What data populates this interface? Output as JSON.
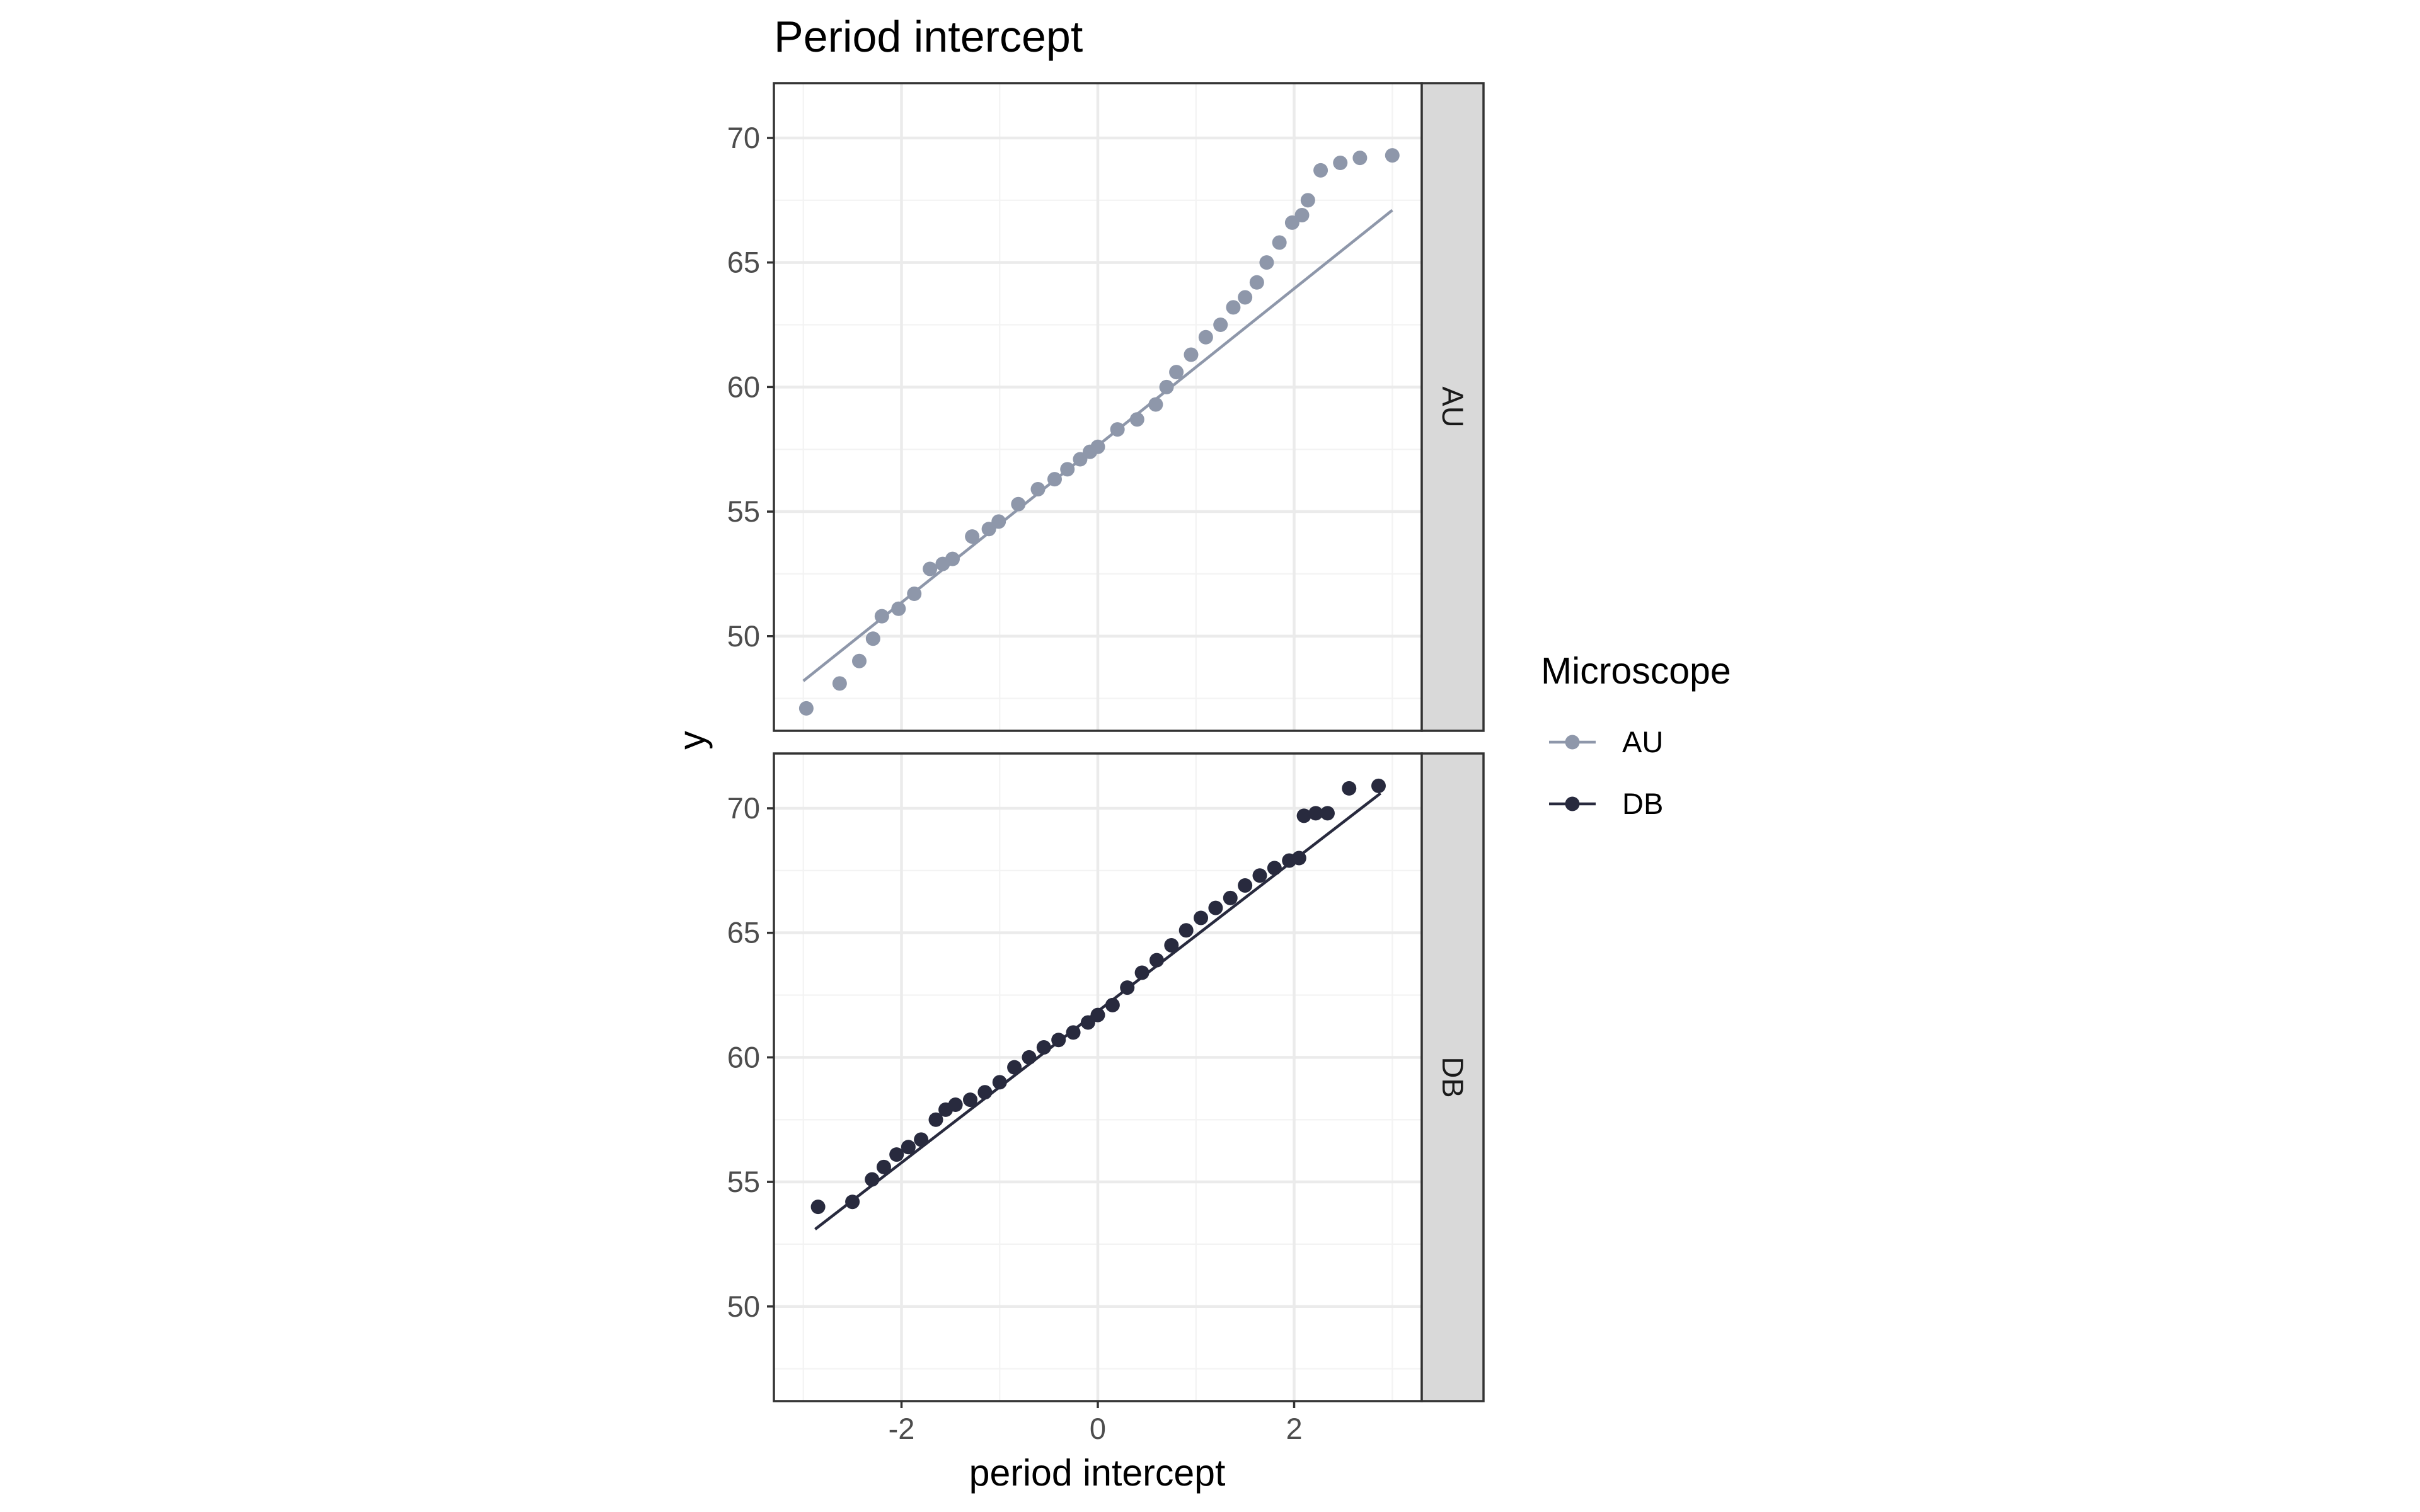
{
  "chart_data": {
    "type": "scatter",
    "title": "Period intercept",
    "xlabel": "period intercept",
    "ylabel": "y",
    "xlim": [
      -3.3,
      3.3
    ],
    "ylim": [
      46.2,
      72.2
    ],
    "x_ticks": [
      -2,
      0,
      2
    ],
    "y_ticks": [
      50,
      55,
      60,
      65,
      70
    ],
    "grid": true,
    "legend": {
      "title": "Microscope",
      "placement": "right",
      "entries": [
        {
          "label": "AU",
          "color": "#8e97aa"
        },
        {
          "label": "DB",
          "color": "#282a3e"
        }
      ]
    },
    "facets": [
      {
        "strip_label": "AU",
        "color": "#8e97aa",
        "line": {
          "x": [
            -3.0,
            3.0
          ],
          "y": [
            48.2,
            67.1
          ]
        },
        "points": {
          "x": [
            -2.97,
            -2.63,
            -2.43,
            -2.29,
            -2.2,
            -2.03,
            -1.87,
            -1.71,
            -1.58,
            -1.48,
            -1.28,
            -1.11,
            -1.01,
            -0.81,
            -0.61,
            -0.44,
            -0.31,
            -0.18,
            -0.08,
            0.0,
            0.2,
            0.4,
            0.59,
            0.7,
            0.8,
            0.95,
            1.1,
            1.25,
            1.38,
            1.5,
            1.62,
            1.72,
            1.85,
            1.98,
            2.08,
            2.14,
            2.27,
            2.47,
            2.67,
            3.0
          ],
          "y": [
            47.1,
            48.1,
            49.0,
            49.9,
            50.8,
            51.1,
            51.7,
            52.7,
            52.9,
            53.1,
            54.0,
            54.3,
            54.6,
            55.3,
            55.9,
            56.3,
            56.7,
            57.1,
            57.4,
            57.6,
            58.3,
            58.7,
            59.3,
            60.0,
            60.6,
            61.3,
            62.0,
            62.5,
            63.2,
            63.6,
            64.2,
            65.0,
            65.8,
            66.6,
            66.9,
            67.5,
            68.7,
            69.0,
            69.2,
            69.3
          ]
        }
      },
      {
        "strip_label": "DB",
        "color": "#282a3e",
        "line": {
          "x": [
            -2.88,
            2.88
          ],
          "y": [
            53.1,
            70.6
          ]
        },
        "points": {
          "x": [
            -2.85,
            -2.5,
            -2.3,
            -2.18,
            -2.05,
            -1.93,
            -1.8,
            -1.65,
            -1.55,
            -1.45,
            -1.3,
            -1.15,
            -1.0,
            -0.85,
            -0.7,
            -0.55,
            -0.4,
            -0.25,
            -0.1,
            0.0,
            0.15,
            0.3,
            0.45,
            0.6,
            0.75,
            0.9,
            1.05,
            1.2,
            1.35,
            1.5,
            1.65,
            1.8,
            1.95,
            2.05,
            2.1,
            2.22,
            2.34,
            2.56,
            2.86
          ],
          "y": [
            54.0,
            54.2,
            55.1,
            55.6,
            56.1,
            56.4,
            56.7,
            57.5,
            57.9,
            58.1,
            58.3,
            58.6,
            59.0,
            59.6,
            60.0,
            60.4,
            60.7,
            61.0,
            61.4,
            61.7,
            62.1,
            62.8,
            63.4,
            63.9,
            64.5,
            65.1,
            65.6,
            66.0,
            66.4,
            66.9,
            67.3,
            67.6,
            67.9,
            68.0,
            69.7,
            69.8,
            69.8,
            70.8,
            70.9
          ]
        }
      }
    ]
  }
}
